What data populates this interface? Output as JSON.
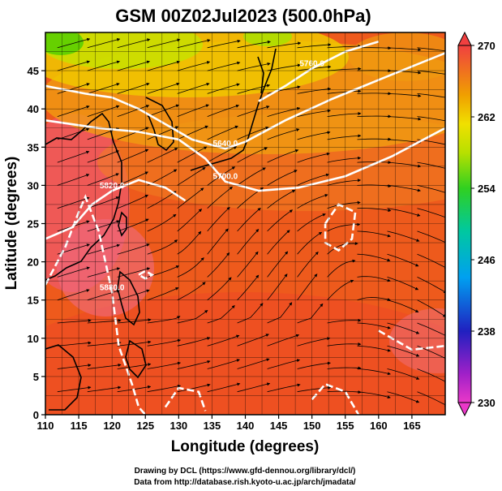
{
  "title": "GSM 00Z02Jul2023 (500.0hPa)",
  "credits": [
    "Drawing by DCL (https://www.gfd-dennou.org/library/dcl/)",
    "Data from http://database.rish.kyoto-u.ac.jp/arch/jmadata/"
  ],
  "chart_data": {
    "type": "heatmap",
    "xlabel": "Longitude (degrees)",
    "ylabel": "Latitude  (degrees)",
    "xlim": [
      110,
      170
    ],
    "ylim": [
      0,
      50
    ],
    "xticks": [
      110,
      115,
      120,
      125,
      130,
      135,
      140,
      145,
      150,
      155,
      160,
      165
    ],
    "yticks": [
      0,
      5,
      10,
      15,
      20,
      25,
      30,
      35,
      40,
      45
    ],
    "colorbar": {
      "min": 230,
      "max": 270,
      "ticks": [
        230,
        238,
        246,
        254,
        262,
        270
      ]
    },
    "contours": [
      {
        "label": "5700.0",
        "level": 5700,
        "points": [
          [
            110,
            38.5
          ],
          [
            118,
            37.5
          ],
          [
            124,
            37
          ],
          [
            130,
            36
          ],
          [
            134,
            33.5
          ],
          [
            137,
            30.5
          ],
          [
            142,
            29.3
          ],
          [
            148,
            29.7
          ],
          [
            155,
            31.2
          ],
          [
            162,
            33.8
          ],
          [
            170,
            37.5
          ]
        ]
      },
      {
        "label": "5640.0",
        "level": 5640,
        "points": [
          [
            110,
            43
          ],
          [
            116,
            42
          ],
          [
            120,
            41.5
          ],
          [
            124,
            40
          ],
          [
            127,
            38.5
          ],
          [
            132,
            36
          ],
          [
            137,
            34.8
          ],
          [
            140,
            35.7
          ],
          [
            146,
            38.5
          ],
          [
            153,
            41.3
          ],
          [
            162,
            44.5
          ],
          [
            170,
            47.3
          ]
        ]
      },
      {
        "label": "5760.0",
        "level": 5760,
        "points": [
          [
            142,
            41
          ],
          [
            146,
            43
          ],
          [
            150,
            45.3
          ],
          [
            155,
            47.5
          ],
          [
            160,
            48.8
          ]
        ]
      },
      {
        "label": "5820.0",
        "level": 5820,
        "points": [
          [
            110,
            23
          ],
          [
            114,
            24.5
          ],
          [
            117,
            27.5
          ],
          [
            120,
            29.3
          ],
          [
            124,
            30.7
          ],
          [
            128,
            29.7
          ],
          [
            131,
            28
          ]
        ]
      },
      {
        "label": "",
        "level": 5880,
        "points": [
          [
            152,
            25
          ],
          [
            154,
            27.5
          ],
          [
            156.5,
            26.5
          ],
          [
            156,
            23
          ],
          [
            154,
            21.5
          ],
          [
            152,
            22.5
          ],
          [
            152,
            25
          ]
        ]
      },
      {
        "label": "",
        "level": 5880,
        "points": [
          [
            124,
            18.3
          ],
          [
            125,
            18.8
          ],
          [
            126,
            18.3
          ],
          [
            125,
            17.8
          ],
          [
            124,
            18.3
          ]
        ]
      },
      {
        "label": "",
        "level": 5880,
        "points": [
          [
            150,
            2
          ],
          [
            152,
            4
          ],
          [
            155,
            3
          ],
          [
            157,
            0
          ]
        ]
      },
      {
        "label": "",
        "level": 5880,
        "points": [
          [
            128,
            1
          ],
          [
            130,
            3.5
          ],
          [
            133,
            3
          ],
          [
            134,
            0.5
          ]
        ]
      },
      {
        "label": "5880.0",
        "level": 5880,
        "points": [
          [
            110,
            17
          ],
          [
            113,
            22
          ],
          [
            115,
            26.5
          ],
          [
            116,
            28.5
          ],
          [
            118,
            24
          ],
          [
            120,
            16
          ],
          [
            121,
            9
          ],
          [
            123,
            4
          ],
          [
            124,
            1
          ],
          [
            125,
            0
          ]
        ]
      },
      {
        "label": "",
        "level": 5880,
        "points": [
          [
            160,
            11
          ],
          [
            165,
            8.5
          ],
          [
            170,
            9
          ]
        ]
      }
    ]
  }
}
